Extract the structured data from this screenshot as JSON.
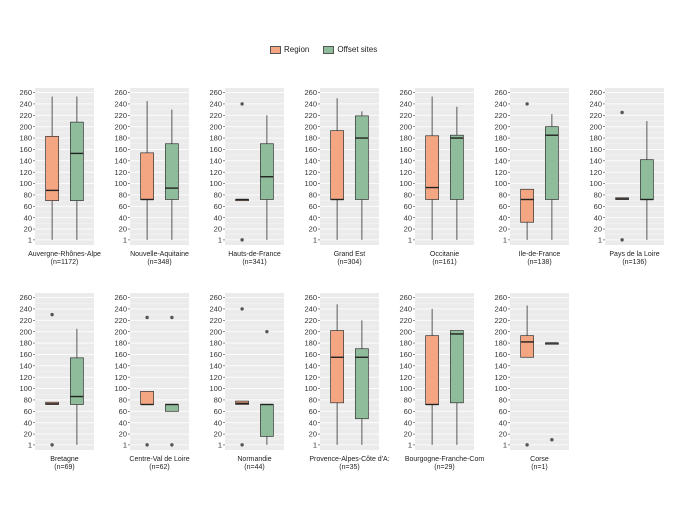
{
  "chart_data": {
    "type": "boxplot",
    "legend": {
      "position": "top",
      "entries": [
        {
          "name": "Region",
          "color": "#F4A582"
        },
        {
          "name": "Offset sites",
          "color": "#8FBC9A"
        }
      ]
    },
    "y_ticks": [
      "1",
      "20",
      "40",
      "60",
      "80",
      "100",
      "120",
      "140",
      "160",
      "180",
      "200",
      "220",
      "240",
      "260"
    ],
    "panels": [
      {
        "title": "Auvergne-Rhônes-Alpe",
        "n": "(n=1172)",
        "region": {
          "min": 1,
          "q1": 70,
          "median": 88,
          "q3": 183,
          "max": 253,
          "outliers": []
        },
        "offset": {
          "min": 1,
          "q1": 70,
          "median": 153,
          "q3": 208,
          "max": 253,
          "outliers": []
        }
      },
      {
        "title": "Nouvelle-Aquitaine",
        "n": "(n=348)",
        "region": {
          "min": 1,
          "q1": 72,
          "median": 72,
          "q3": 154,
          "max": 245,
          "outliers": []
        },
        "offset": {
          "min": 1,
          "q1": 72,
          "median": 92,
          "q3": 170,
          "max": 230,
          "outliers": []
        }
      },
      {
        "title": "Hauts-de-France",
        "n": "(n=341)",
        "region": {
          "min": 72,
          "q1": 72,
          "median": 72,
          "q3": 72,
          "max": 72,
          "outliers": [
            1,
            240
          ]
        },
        "offset": {
          "min": 1,
          "q1": 72,
          "median": 112,
          "q3": 170,
          "max": 220,
          "outliers": []
        }
      },
      {
        "title": "Grand Est",
        "n": "(n=304)",
        "region": {
          "min": 1,
          "q1": 72,
          "median": 72,
          "q3": 193,
          "max": 250,
          "outliers": []
        },
        "offset": {
          "min": 1,
          "q1": 72,
          "median": 180,
          "q3": 219,
          "max": 227,
          "outliers": []
        }
      },
      {
        "title": "Occitanie",
        "n": "(n=161)",
        "region": {
          "min": 1,
          "q1": 72,
          "median": 93,
          "q3": 184,
          "max": 253,
          "outliers": []
        },
        "offset": {
          "min": 1,
          "q1": 72,
          "median": 180,
          "q3": 185,
          "max": 235,
          "outliers": []
        }
      },
      {
        "title": "Ile-de-France",
        "n": "(n=138)",
        "region": {
          "min": 1,
          "q1": 32,
          "median": 72,
          "q3": 90,
          "max": 90,
          "outliers": [
            240
          ]
        },
        "offset": {
          "min": 1,
          "q1": 72,
          "median": 185,
          "q3": 200,
          "max": 222,
          "outliers": []
        }
      },
      {
        "title": "Pays de la Loire",
        "n": "(n=136)",
        "region": {
          "min": 72,
          "q1": 72,
          "median": 73,
          "q3": 75,
          "max": 75,
          "outliers": [
            1,
            225
          ]
        },
        "offset": {
          "min": 1,
          "q1": 72,
          "median": 72,
          "q3": 142,
          "max": 210,
          "outliers": []
        }
      },
      {
        "title": "Bretagne",
        "n": "(n=69)",
        "region": {
          "min": 72,
          "q1": 72,
          "median": 73,
          "q3": 76,
          "max": 76,
          "outliers": [
            1,
            230
          ]
        },
        "offset": {
          "min": 1,
          "q1": 72,
          "median": 86,
          "q3": 154,
          "max": 205,
          "outliers": []
        }
      },
      {
        "title": "Centre-Val de Loire",
        "n": "(n=62)",
        "region": {
          "min": 72,
          "q1": 72,
          "median": 72,
          "q3": 95,
          "max": 95,
          "outliers": [
            1,
            225
          ]
        },
        "offset": {
          "min": 60,
          "q1": 60,
          "median": 72,
          "q3": 72,
          "max": 72,
          "outliers": [
            1,
            225
          ]
        }
      },
      {
        "title": "Normandie",
        "n": "(n=44)",
        "region": {
          "min": 72,
          "q1": 72,
          "median": 74,
          "q3": 78,
          "max": 78,
          "outliers": [
            1,
            240
          ]
        },
        "offset": {
          "min": 1,
          "q1": 16,
          "median": 72,
          "q3": 72,
          "max": 72,
          "outliers": [
            200
          ]
        }
      },
      {
        "title": "Provence-Alpes-Côte d'A:",
        "n": "(n=35)",
        "region": {
          "min": 1,
          "q1": 75,
          "median": 155,
          "q3": 202,
          "max": 248,
          "outliers": []
        },
        "offset": {
          "min": 1,
          "q1": 47,
          "median": 155,
          "q3": 170,
          "max": 220,
          "outliers": []
        }
      },
      {
        "title": "Bourgogne-Franche-Com",
        "n": "(n=29)",
        "region": {
          "min": 1,
          "q1": 72,
          "median": 72,
          "q3": 193,
          "max": 240,
          "outliers": []
        },
        "offset": {
          "min": 1,
          "q1": 75,
          "median": 196,
          "q3": 202,
          "max": 202,
          "outliers": []
        }
      },
      {
        "title": "Corse",
        "n": "(n=1)",
        "region": {
          "min": 155,
          "q1": 155,
          "median": 182,
          "q3": 193,
          "max": 246,
          "outliers": [
            1
          ]
        },
        "offset": {
          "min": 180,
          "q1": 180,
          "median": 180,
          "q3": 180,
          "max": 180,
          "outliers": [
            10
          ]
        }
      }
    ]
  }
}
